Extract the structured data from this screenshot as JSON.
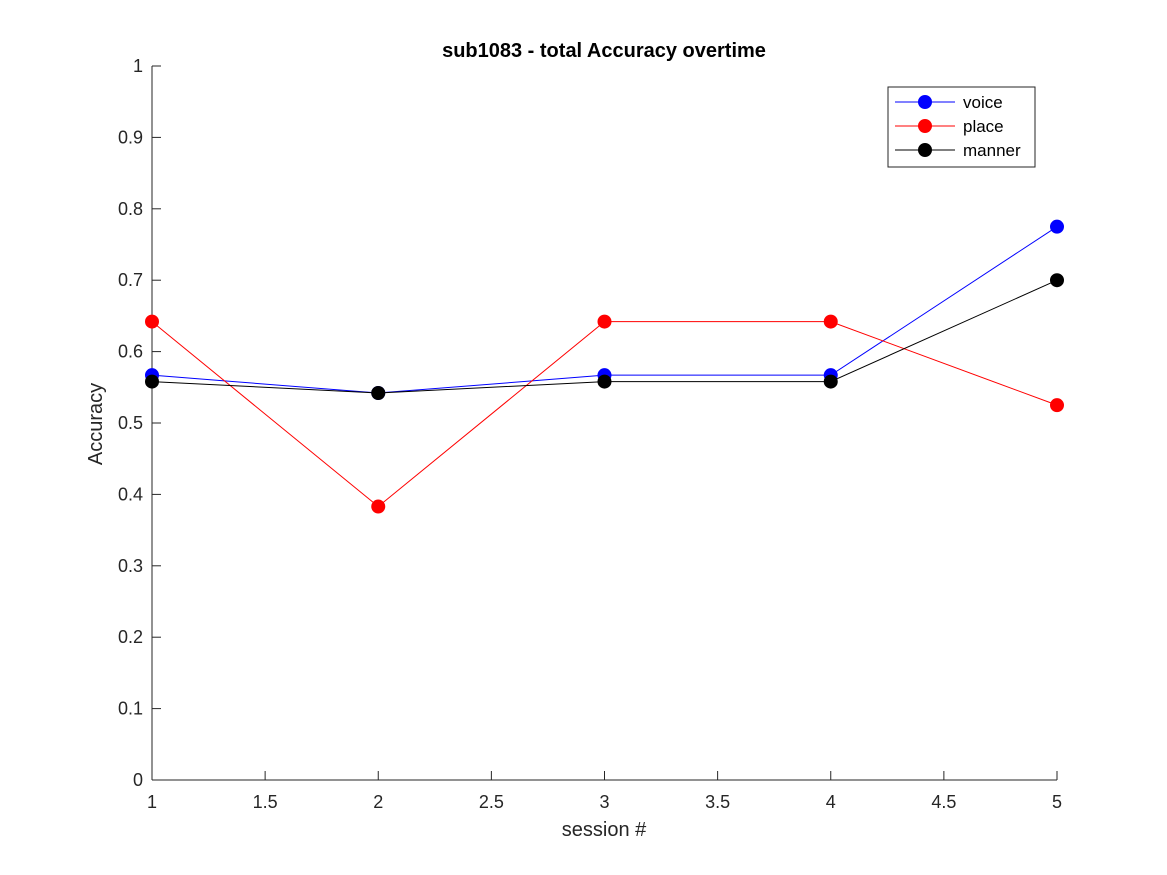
{
  "chart_data": {
    "type": "line",
    "title": "sub1083 - total Accuracy overtime",
    "xlabel": "session #",
    "ylabel": "Accuracy",
    "xlim": [
      1,
      5
    ],
    "ylim": [
      0,
      1
    ],
    "x": [
      1,
      2,
      3,
      4,
      5
    ],
    "xticks": [
      "1",
      "1.5",
      "2",
      "2.5",
      "3",
      "3.5",
      "4",
      "4.5",
      "5"
    ],
    "yticks": [
      "0",
      "0.1",
      "0.2",
      "0.3",
      "0.4",
      "0.5",
      "0.6",
      "0.7",
      "0.8",
      "0.9",
      "1"
    ],
    "grid": false,
    "legend_position": "top-right",
    "series": [
      {
        "name": "voice",
        "color": "#0000ff",
        "values": [
          0.567,
          0.542,
          0.567,
          0.567,
          0.775
        ]
      },
      {
        "name": "place",
        "color": "#ff0000",
        "values": [
          0.642,
          0.383,
          0.642,
          0.642,
          0.525
        ]
      },
      {
        "name": "manner",
        "color": "#000000",
        "values": [
          0.558,
          0.542,
          0.558,
          0.558,
          0.7
        ]
      }
    ]
  }
}
